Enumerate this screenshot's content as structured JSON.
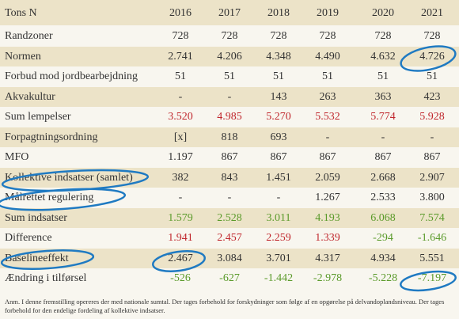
{
  "table": {
    "unit_header": "Tons N",
    "years": [
      "2016",
      "2017",
      "2018",
      "2019",
      "2020",
      "2021"
    ],
    "rows": [
      {
        "label": "Randzoner",
        "values": [
          "728",
          "728",
          "728",
          "728",
          "728",
          "728"
        ],
        "tone": "normal"
      },
      {
        "label": "Normen",
        "values": [
          "2.741",
          "4.206",
          "4.348",
          "4.490",
          "4.632",
          "4.726"
        ],
        "tone": "normal"
      },
      {
        "label": "Forbud mod jordbearbejdning",
        "values": [
          "51",
          "51",
          "51",
          "51",
          "51",
          "51"
        ],
        "tone": "normal"
      },
      {
        "label": "Akvakultur",
        "values": [
          "-",
          "-",
          "143",
          "263",
          "363",
          "423"
        ],
        "tone": "normal"
      },
      {
        "label": "Sum lempelser",
        "values": [
          "3.520",
          "4.985",
          "5.270",
          "5.532",
          "5.774",
          "5.928"
        ],
        "tone": "red"
      },
      {
        "label": "Forpagtningsordning",
        "values": [
          "[x]",
          "818",
          "693",
          "-",
          "-",
          "-"
        ],
        "tone": "normal"
      },
      {
        "label": "MFO",
        "values": [
          "1.197",
          "867",
          "867",
          "867",
          "867",
          "867"
        ],
        "tone": "normal"
      },
      {
        "label": "Kollektive indsatser (samlet)",
        "values": [
          "382",
          "843",
          "1.451",
          "2.059",
          "2.668",
          "2.907"
        ],
        "tone": "normal"
      },
      {
        "label": "Målrettet regulering",
        "values": [
          "-",
          "-",
          "-",
          "1.267",
          "2.533",
          "3.800"
        ],
        "tone": "normal"
      },
      {
        "label": "Sum indsatser",
        "values": [
          "1.579",
          "2.528",
          "3.011",
          "4.193",
          "6.068",
          "7.574"
        ],
        "tone": "green"
      },
      {
        "label": "Difference",
        "values": [
          "1.941",
          "2.457",
          "2.259",
          "1.339",
          "-294",
          "-1.646"
        ],
        "tone": "mixed"
      },
      {
        "label": "Baselineeffekt",
        "values": [
          "2.467",
          "3.084",
          "3.701",
          "4.317",
          "4.934",
          "5.551"
        ],
        "tone": "normal"
      },
      {
        "label": "Ændring i tilførsel",
        "values": [
          "-526",
          "-627",
          "-1.442",
          "-2.978",
          "-5.228",
          "-7.197"
        ],
        "tone": "green"
      }
    ]
  },
  "note": "Anm. I denne fremstilling opereres der med nationale sumtal. Der tages forbehold for forskydninger som følge af en opgørelse på delvandoplandsniveau. Der tages forbehold for den endelige fordeling af kollektive indsatser.",
  "colors": {
    "header_bg": "#ece3c8",
    "red": "#c0272d",
    "green": "#5a9a2a",
    "annotation": "#1f7ac2"
  }
}
